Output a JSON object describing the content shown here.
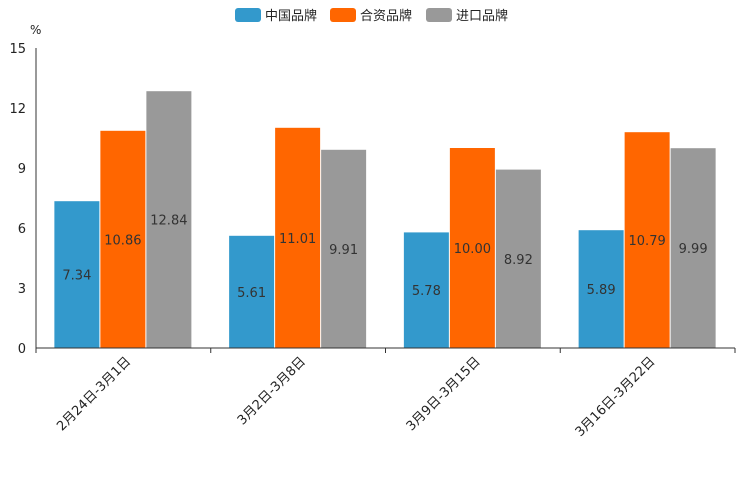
{
  "chart_data": {
    "type": "bar",
    "title": "",
    "unit": "%",
    "ylim": [
      0,
      15
    ],
    "yticks": [
      0,
      3,
      6,
      9,
      12,
      15
    ],
    "grid": false,
    "legend_position": "top-center",
    "categories": [
      "2月24日-3月1日",
      "3月2日-3月8日",
      "3月9日-3月15日",
      "3月16日-3月22日"
    ],
    "series": [
      {
        "name": "中国品牌",
        "color": "#3399cc",
        "values": [
          7.34,
          5.61,
          5.78,
          5.89
        ],
        "labels": [
          "7.34",
          "5.61",
          "5.78",
          "5.89"
        ]
      },
      {
        "name": "合资品牌",
        "color": "#ff6600",
        "values": [
          10.86,
          11.01,
          10.0,
          10.79
        ],
        "labels": [
          "10.86",
          "11.01",
          "10.00",
          "10.79"
        ]
      },
      {
        "name": "进口品牌",
        "color": "#999999",
        "values": [
          12.84,
          9.91,
          8.92,
          9.99
        ],
        "labels": [
          "12.84",
          "9.91",
          "8.92",
          "9.99"
        ]
      }
    ]
  }
}
